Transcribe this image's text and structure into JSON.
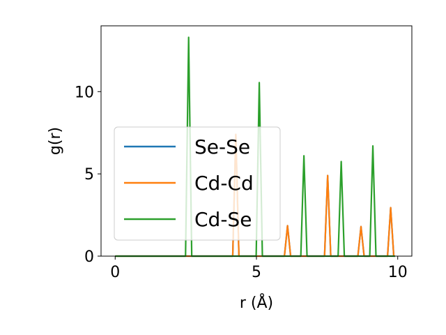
{
  "chart_data": {
    "type": "line",
    "xlabel": "r (Å)",
    "ylabel": "g(r)",
    "xlim": [
      -0.5,
      10.5
    ],
    "ylim": [
      0,
      14
    ],
    "xticks": [
      0,
      5,
      10
    ],
    "yticks": [
      0,
      5,
      10
    ],
    "grid": false,
    "legend_position": "center-left",
    "series": [
      {
        "name": "Se-Se",
        "color": "#1f77b4",
        "peaks": [
          [
            4.27,
            7.4
          ],
          [
            6.1,
            1.85
          ],
          [
            7.52,
            4.9
          ],
          [
            8.7,
            1.8
          ],
          [
            9.75,
            2.95
          ]
        ]
      },
      {
        "name": "Cd-Cd",
        "color": "#ff7f0e",
        "peaks": [
          [
            4.27,
            7.4
          ],
          [
            6.1,
            1.85
          ],
          [
            7.52,
            4.9
          ],
          [
            8.7,
            1.8
          ],
          [
            9.75,
            2.95
          ]
        ]
      },
      {
        "name": "Cd-Se",
        "color": "#2ca02c",
        "peaks": [
          [
            2.6,
            13.3
          ],
          [
            5.1,
            10.55
          ],
          [
            6.68,
            6.1
          ],
          [
            8.0,
            5.75
          ],
          [
            9.12,
            6.7
          ]
        ]
      }
    ]
  }
}
